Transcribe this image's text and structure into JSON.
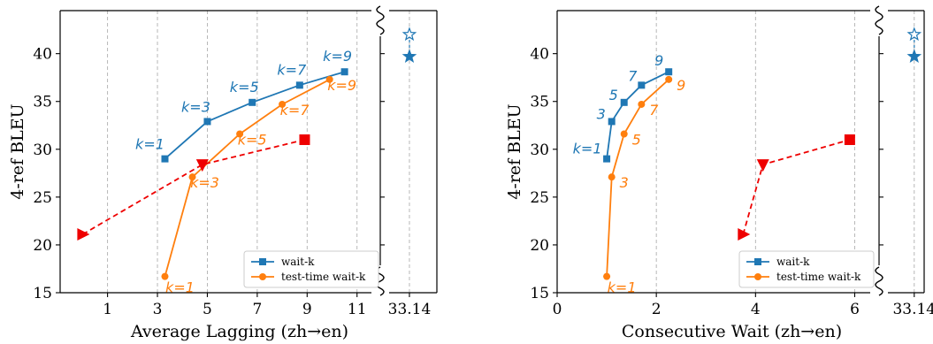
{
  "colors": {
    "wait_k": "#1f77b4",
    "test_time": "#ff7f0e",
    "red": "#ee0000",
    "grid": "#b0b0b0"
  },
  "chart_data": [
    {
      "type": "line",
      "xlabel": "Average Lagging (zh→en)",
      "ylabel": "4-ref BLEU",
      "xlim": [
        -0.9,
        14.2
      ],
      "ylim": [
        15,
        44.5
      ],
      "xticks": [
        1,
        3,
        5,
        7,
        9,
        11
      ],
      "xtick_labels": [
        "1",
        "3",
        "5",
        "7",
        "9",
        "11"
      ],
      "break_tick": {
        "x": 13.1,
        "label": "33.14"
      },
      "yticks": [
        15,
        20,
        25,
        30,
        35,
        40
      ],
      "grid": "vertical dashed",
      "legend": "bottom-right",
      "series": [
        {
          "name": "wait-k",
          "marker": "square",
          "color": "#1f77b4",
          "linestyle": "solid",
          "x": [
            3.3,
            5.0,
            6.8,
            8.7,
            10.5
          ],
          "y": [
            29.0,
            32.9,
            34.9,
            36.7,
            38.1
          ],
          "labels": [
            "k=1",
            "k=3",
            "k=5",
            "k=7",
            "k=9"
          ]
        },
        {
          "name": "test-time wait-k",
          "marker": "circle",
          "color": "#ff7f0e",
          "linestyle": "solid",
          "x": [
            3.3,
            4.4,
            6.3,
            8.0,
            9.9
          ],
          "y": [
            16.7,
            27.1,
            31.6,
            34.7,
            37.3
          ],
          "labels": [
            "k=1",
            "k=3",
            "k=5",
            "k=7",
            "k=9"
          ]
        },
        {
          "marker": "mixed",
          "color": "#ee0000",
          "linestyle": "dashed",
          "x": [
            0.0,
            4.8,
            8.9
          ],
          "y": [
            21.1,
            28.4,
            31.0
          ]
        },
        {
          "marker": "star",
          "color": "#1f77b4",
          "linestyle": "dashed",
          "x": [
            13.1,
            13.1
          ],
          "y": [
            42.0,
            39.7
          ],
          "fills": [
            "hollow",
            "filled"
          ]
        }
      ]
    },
    {
      "type": "line",
      "xlabel": "Consecutive Wait (zh→en)",
      "ylabel": "4-ref BLEU",
      "xlim": [
        0,
        7.4
      ],
      "ylim": [
        15,
        44.5
      ],
      "xticks": [
        0,
        2,
        4,
        6
      ],
      "xtick_labels": [
        "0",
        "2",
        "4",
        "6"
      ],
      "break_tick": {
        "x": 7.2,
        "label": "33.14"
      },
      "yticks": [
        15,
        20,
        25,
        30,
        35,
        40
      ],
      "grid": "vertical dashed",
      "legend": "bottom-right",
      "series": [
        {
          "name": "wait-k",
          "marker": "square",
          "color": "#1f77b4",
          "linestyle": "solid",
          "x": [
            1.0,
            1.1,
            1.35,
            1.7,
            2.25
          ],
          "y": [
            29.0,
            32.9,
            34.9,
            36.7,
            38.1
          ],
          "labels": [
            "k=1",
            "3",
            "5",
            "7",
            "9"
          ]
        },
        {
          "name": "test-time wait-k",
          "marker": "circle",
          "color": "#ff7f0e",
          "linestyle": "solid",
          "x": [
            1.0,
            1.1,
            1.35,
            1.7,
            2.25
          ],
          "y": [
            16.7,
            27.1,
            31.6,
            34.7,
            37.3
          ],
          "labels": [
            "k=1",
            "3",
            "5",
            "7",
            "9"
          ]
        },
        {
          "marker": "mixed",
          "color": "#ee0000",
          "linestyle": "dashed",
          "x": [
            3.75,
            4.15,
            5.9
          ],
          "y": [
            21.1,
            28.4,
            31.0
          ]
        },
        {
          "marker": "star",
          "color": "#1f77b4",
          "linestyle": "dashed",
          "x": [
            7.2,
            7.2
          ],
          "y": [
            42.0,
            39.7
          ],
          "fills": [
            "hollow",
            "filled"
          ]
        }
      ]
    }
  ]
}
